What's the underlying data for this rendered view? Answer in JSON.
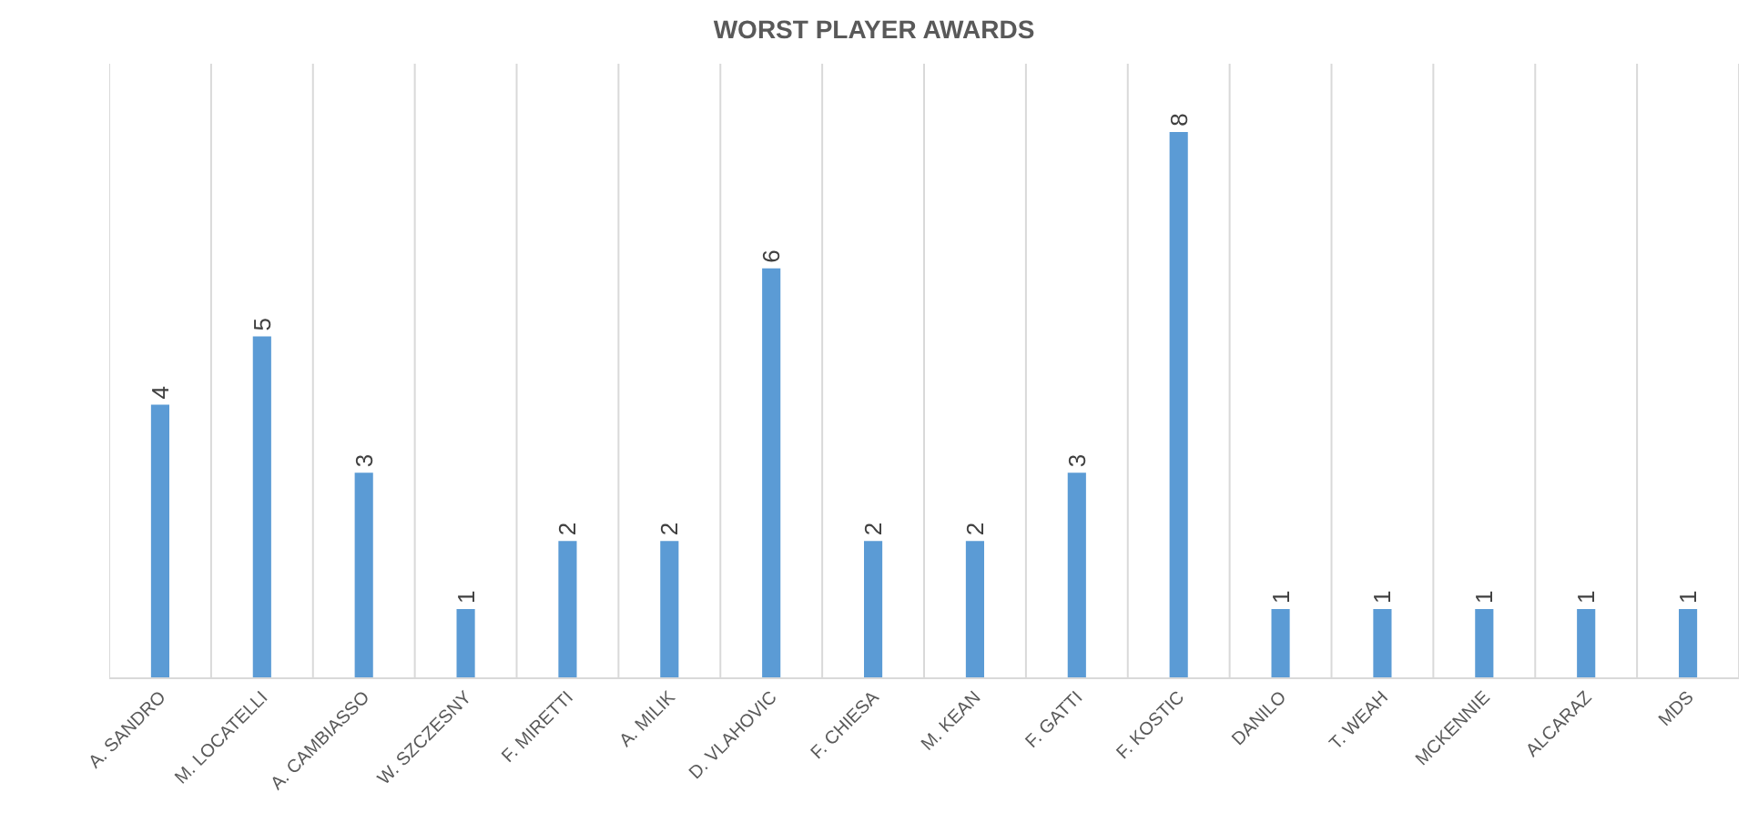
{
  "chart_data": {
    "type": "bar",
    "title": "WORST PLAYER AWARDS",
    "categories": [
      "A. SANDRO",
      "M. LOCATELLI",
      "A. CAMBIASSO",
      "W. SZCZESNY",
      "F. MIRETTI",
      "A. MILIK",
      "D. VLAHOVIC",
      "F. CHIESA",
      "M. KEAN",
      "F. GATTI",
      "F. KOSTIC",
      "DANILO",
      "T. WEAH",
      "MCKENNIE",
      "ALCARAZ",
      "MDS"
    ],
    "values": [
      4,
      5,
      3,
      1,
      2,
      2,
      6,
      2,
      2,
      3,
      8,
      1,
      1,
      1,
      1,
      1
    ],
    "color": "#5b9bd5",
    "ylim": [
      0,
      9
    ],
    "grid": "x",
    "tick_labels": "x",
    "data_labels": true
  }
}
